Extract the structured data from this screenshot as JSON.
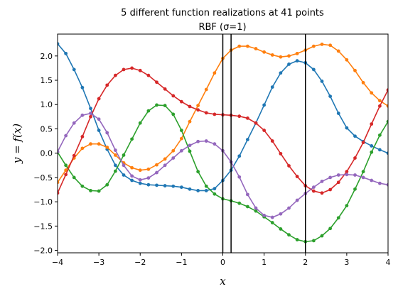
{
  "chart_data": {
    "type": "line",
    "title": "5 different function realizations at 41 points",
    "subtitle": "RBF (σ=1)",
    "xlabel": "x",
    "ylabel": "y = f(x)",
    "xlim": [
      -4,
      4
    ],
    "ylim": [
      -2.05,
      2.45
    ],
    "xticks": [
      "−4",
      "−3",
      "−2",
      "−1",
      "0",
      "1",
      "2",
      "3",
      "4"
    ],
    "xtick_values": [
      -4,
      -3,
      -2,
      -1,
      0,
      1,
      2,
      3,
      4
    ],
    "yticks": [
      "−2.0",
      "−1.5",
      "−1.0",
      "−0.5",
      "0.0",
      "0.5",
      "1.0",
      "1.5",
      "2.0"
    ],
    "ytick_values": [
      -2.0,
      -1.5,
      -1.0,
      -0.5,
      0.0,
      0.5,
      1.0,
      1.5,
      2.0
    ],
    "grid": false,
    "legend": "none",
    "vlines": [
      0,
      0.2,
      2.0
    ],
    "x": [
      -4.0,
      -3.8,
      -3.6,
      -3.4,
      -3.2,
      -3.0,
      -2.8,
      -2.6,
      -2.4,
      -2.2,
      -2.0,
      -1.8,
      -1.6,
      -1.4,
      -1.2,
      -1.0,
      -0.8,
      -0.6,
      -0.4,
      -0.2,
      0.0,
      0.2,
      0.4,
      0.6,
      0.8,
      1.0,
      1.2,
      1.4,
      1.6,
      1.8,
      2.0,
      2.2,
      2.4,
      2.6,
      2.8,
      3.0,
      3.2,
      3.4,
      3.6,
      3.8,
      4.0
    ],
    "series": [
      {
        "color": "#1f77b4",
        "values": [
          2.25,
          2.05,
          1.72,
          1.35,
          0.92,
          0.47,
          0.08,
          -0.25,
          -0.45,
          -0.56,
          -0.62,
          -0.65,
          -0.66,
          -0.67,
          -0.68,
          -0.7,
          -0.74,
          -0.77,
          -0.77,
          -0.73,
          -0.56,
          -0.35,
          -0.06,
          0.28,
          0.62,
          0.99,
          1.36,
          1.65,
          1.83,
          1.9,
          1.86,
          1.72,
          1.48,
          1.17,
          0.82,
          0.52,
          0.35,
          0.24,
          0.15,
          0.07,
          0.0
        ]
      },
      {
        "color": "#ff7f0e",
        "values": [
          -0.6,
          -0.35,
          -0.1,
          0.1,
          0.19,
          0.19,
          0.12,
          -0.04,
          -0.2,
          -0.3,
          -0.35,
          -0.33,
          -0.24,
          -0.12,
          0.05,
          0.3,
          0.65,
          0.98,
          1.31,
          1.65,
          1.95,
          2.12,
          2.2,
          2.2,
          2.15,
          2.08,
          2.02,
          1.98,
          2.0,
          2.05,
          2.12,
          2.2,
          2.24,
          2.22,
          2.1,
          1.92,
          1.7,
          1.45,
          1.24,
          1.08,
          0.97
        ]
      },
      {
        "color": "#2ca02c",
        "values": [
          0.02,
          -0.25,
          -0.5,
          -0.68,
          -0.77,
          -0.78,
          -0.65,
          -0.37,
          -0.04,
          0.29,
          0.62,
          0.87,
          0.99,
          0.98,
          0.8,
          0.47,
          0.04,
          -0.38,
          -0.68,
          -0.84,
          -0.94,
          -0.98,
          -1.03,
          -1.1,
          -1.19,
          -1.31,
          -1.43,
          -1.56,
          -1.68,
          -1.78,
          -1.82,
          -1.8,
          -1.7,
          -1.55,
          -1.33,
          -1.08,
          -0.74,
          -0.38,
          0.02,
          0.37,
          0.65
        ]
      },
      {
        "color": "#d62728",
        "values": [
          -0.82,
          -0.44,
          -0.05,
          0.34,
          0.75,
          1.12,
          1.4,
          1.6,
          1.72,
          1.75,
          1.7,
          1.6,
          1.46,
          1.32,
          1.18,
          1.06,
          0.96,
          0.89,
          0.83,
          0.8,
          0.79,
          0.78,
          0.76,
          0.72,
          0.62,
          0.47,
          0.25,
          -0.01,
          -0.26,
          -0.48,
          -0.67,
          -0.78,
          -0.82,
          -0.75,
          -0.6,
          -0.38,
          -0.1,
          0.22,
          0.6,
          0.97,
          1.3
        ]
      },
      {
        "color": "#9467bd",
        "values": [
          0.03,
          0.36,
          0.62,
          0.78,
          0.82,
          0.7,
          0.42,
          0.06,
          -0.25,
          -0.47,
          -0.55,
          -0.51,
          -0.4,
          -0.25,
          -0.1,
          0.05,
          0.16,
          0.24,
          0.25,
          0.19,
          0.05,
          -0.18,
          -0.49,
          -0.85,
          -1.13,
          -1.28,
          -1.32,
          -1.25,
          -1.13,
          -0.97,
          -0.83,
          -0.7,
          -0.58,
          -0.5,
          -0.45,
          -0.44,
          -0.45,
          -0.5,
          -0.56,
          -0.62,
          -0.65
        ]
      }
    ]
  }
}
